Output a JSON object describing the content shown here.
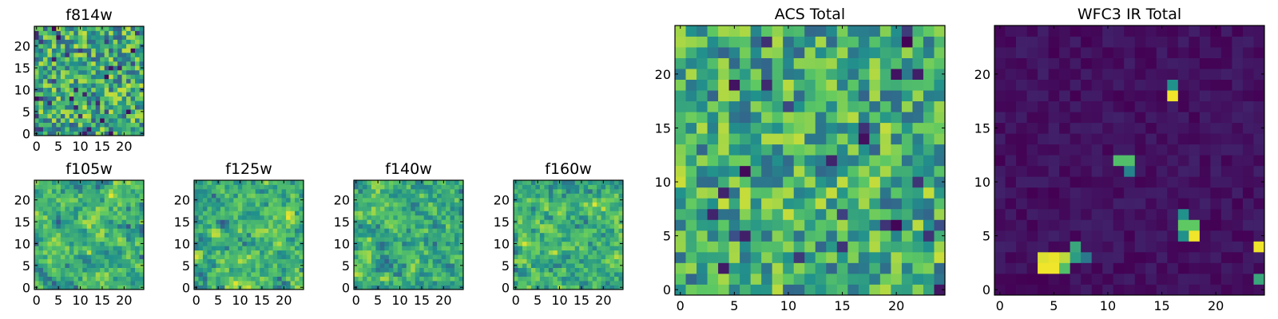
{
  "figure": {
    "colormap": "viridis",
    "colormap_stops": [
      "#440154",
      "#3b528b",
      "#21918c",
      "#5ec962",
      "#fde725"
    ]
  },
  "chart_data": [
    {
      "id": "f814w",
      "type": "heatmap",
      "title": "f814w",
      "grid": [
        25,
        25
      ],
      "xlim": [
        0,
        24
      ],
      "ylim": [
        0,
        24
      ],
      "xticks": [
        0,
        5,
        10,
        15,
        20
      ],
      "yticks": [
        0,
        5,
        10,
        15,
        20
      ],
      "character": "uniform random noise, mostly green-yellow with scattered dark purple pixels",
      "seed": 11,
      "mean": 0.6,
      "spread": 0.32,
      "smooth": 0,
      "hotspots": []
    },
    {
      "id": "f105w",
      "type": "heatmap",
      "title": "f105w",
      "grid": [
        25,
        25
      ],
      "xlim": [
        0,
        24
      ],
      "ylim": [
        0,
        24
      ],
      "xticks": [
        0,
        5,
        10,
        15,
        20
      ],
      "yticks": [
        0,
        5,
        10,
        15,
        20
      ],
      "character": "smoothed noise, mostly yellow-green with a few dark patches",
      "seed": 23,
      "mean": 0.68,
      "spread": 0.3,
      "smooth": 1,
      "hotspots": []
    },
    {
      "id": "f125w",
      "type": "heatmap",
      "title": "f125w",
      "grid": [
        25,
        25
      ],
      "xlim": [
        0,
        24
      ],
      "ylim": [
        0,
        24
      ],
      "xticks": [
        0,
        5,
        10,
        15,
        20
      ],
      "yticks": [
        0,
        5,
        10,
        15,
        20
      ],
      "character": "smoothed noise, yellow-green with scattered dark pixels",
      "seed": 37,
      "mean": 0.66,
      "spread": 0.32,
      "smooth": 1,
      "hotspots": []
    },
    {
      "id": "f140w",
      "type": "heatmap",
      "title": "f140w",
      "grid": [
        25,
        25
      ],
      "xlim": [
        0,
        24
      ],
      "ylim": [
        0,
        24
      ],
      "xticks": [
        0,
        5,
        10,
        15,
        20
      ],
      "yticks": [
        0,
        5,
        10,
        15,
        20
      ],
      "character": "smoothed noise, green-yellow with dark spots",
      "seed": 53,
      "mean": 0.64,
      "spread": 0.32,
      "smooth": 1,
      "hotspots": []
    },
    {
      "id": "f160w",
      "type": "heatmap",
      "title": "f160w",
      "grid": [
        25,
        25
      ],
      "xlim": [
        0,
        24
      ],
      "ylim": [
        0,
        24
      ],
      "xticks": [
        0,
        5,
        10,
        15,
        20
      ],
      "yticks": [
        0,
        5,
        10,
        15,
        20
      ],
      "character": "smoothed noise, yellow-green with dark spots near the top",
      "seed": 71,
      "mean": 0.66,
      "spread": 0.32,
      "smooth": 1,
      "hotspots": []
    },
    {
      "id": "acs-total",
      "type": "heatmap",
      "title": "ACS Total",
      "grid": [
        25,
        25
      ],
      "xlim": [
        0,
        24
      ],
      "ylim": [
        0,
        24
      ],
      "xticks": [
        0,
        5,
        10,
        15,
        20
      ],
      "yticks": [
        0,
        5,
        10,
        15,
        20
      ],
      "character": "uniform random noise, green-yellow with a few dark purple pixels",
      "seed": 89,
      "mean": 0.62,
      "spread": 0.3,
      "smooth": 0,
      "hotspots": []
    },
    {
      "id": "wfc3-ir-total",
      "type": "heatmap",
      "title": "WFC3 IR Total",
      "grid": [
        25,
        25
      ],
      "xlim": [
        0,
        24
      ],
      "ylim": [
        0,
        24
      ],
      "xticks": [
        0,
        5,
        10,
        15,
        20
      ],
      "yticks": [
        0,
        5,
        10,
        15,
        20
      ],
      "character": "dark purple background with a few bright compact sources",
      "seed": 97,
      "mean": 0.05,
      "spread": 0.05,
      "smooth": 0,
      "hotspots": [
        {
          "x": 4,
          "y": 2,
          "v": 0.98
        },
        {
          "x": 5,
          "y": 2,
          "v": 0.98
        },
        {
          "x": 4,
          "y": 3,
          "v": 0.95
        },
        {
          "x": 5,
          "y": 3,
          "v": 0.97
        },
        {
          "x": 6,
          "y": 3,
          "v": 0.9
        },
        {
          "x": 6,
          "y": 2,
          "v": 0.7
        },
        {
          "x": 7,
          "y": 3,
          "v": 0.55
        },
        {
          "x": 7,
          "y": 4,
          "v": 0.6
        },
        {
          "x": 8,
          "y": 3,
          "v": 0.4
        },
        {
          "x": 16,
          "y": 19,
          "v": 0.5
        },
        {
          "x": 16,
          "y": 18,
          "v": 0.98
        },
        {
          "x": 11,
          "y": 12,
          "v": 0.7
        },
        {
          "x": 12,
          "y": 12,
          "v": 0.7
        },
        {
          "x": 12,
          "y": 11,
          "v": 0.45
        },
        {
          "x": 17,
          "y": 7,
          "v": 0.5
        },
        {
          "x": 17,
          "y": 6,
          "v": 0.75
        },
        {
          "x": 18,
          "y": 6,
          "v": 0.75
        },
        {
          "x": 17,
          "y": 5,
          "v": 0.5
        },
        {
          "x": 18,
          "y": 5,
          "v": 0.98
        },
        {
          "x": 24,
          "y": 4,
          "v": 0.98
        },
        {
          "x": 24,
          "y": 1,
          "v": 0.6
        }
      ]
    }
  ]
}
